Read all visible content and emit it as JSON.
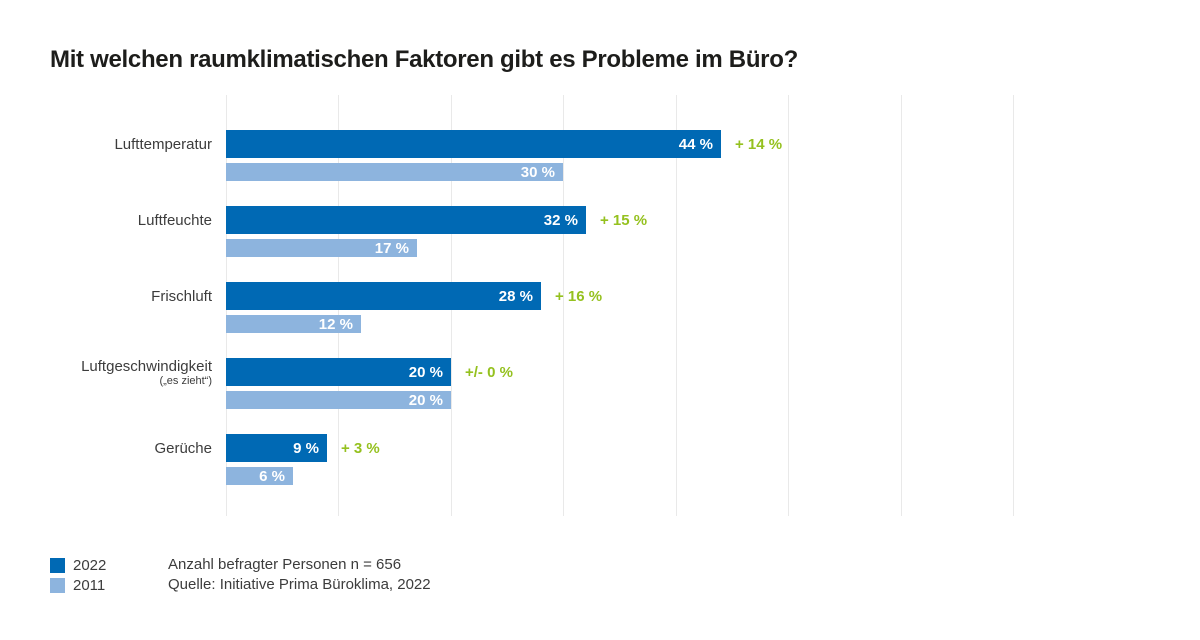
{
  "title": "Mit welchen raumklimatischen Faktoren gibt es Probleme im Büro?",
  "chart_data": {
    "type": "bar",
    "orientation": "horizontal",
    "title": "Mit welchen raumklimatischen Faktoren gibt es Probleme im Büro?",
    "categories": [
      "Lufttemperatur",
      "Luftfeuchte",
      "Frischluft",
      "Luftgeschwindigkeit",
      "Gerüche"
    ],
    "category_sublabels": [
      "",
      "",
      "",
      "(„es zieht“)",
      ""
    ],
    "series": [
      {
        "name": "2022",
        "color": "#0069b4",
        "values": [
          44,
          32,
          28,
          20,
          9
        ]
      },
      {
        "name": "2011",
        "color": "#8db4de",
        "values": [
          30,
          17,
          12,
          20,
          6
        ]
      }
    ],
    "delta_labels": [
      "+ 14 %",
      "+ 15 %",
      "+ 16 %",
      "+/- 0 %",
      "+ 3 %"
    ],
    "delta_color": "#95c11f",
    "value_suffix": " %",
    "xlabel": "",
    "ylabel": "",
    "xlim": [
      0,
      70
    ],
    "grid_step": 10,
    "grid": true,
    "legend_position": "bottom-left"
  },
  "legend": {
    "items": [
      {
        "label": "2022",
        "color": "#0069b4"
      },
      {
        "label": "2011",
        "color": "#8db4de"
      }
    ]
  },
  "notes": {
    "line1": "Anzahl befragter Personen n = 656",
    "line2": "Quelle: Initiative Prima Büroklima, 2022"
  }
}
